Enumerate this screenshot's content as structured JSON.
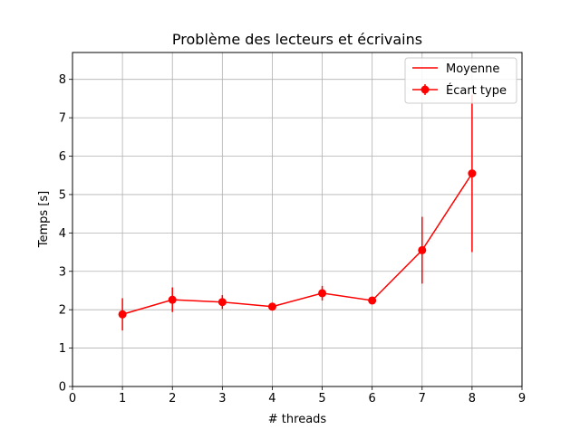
{
  "chart_data": {
    "type": "line",
    "title": "Problème des lecteurs et écrivains",
    "xlabel": "# threads",
    "ylabel": "Temps [s]",
    "xlim": [
      0,
      9
    ],
    "ylim": [
      0,
      8.7
    ],
    "xticks": [
      0,
      1,
      2,
      3,
      4,
      5,
      6,
      7,
      8,
      9
    ],
    "yticks": [
      0,
      1,
      2,
      3,
      4,
      5,
      6,
      7,
      8
    ],
    "grid": true,
    "legend_position": "top-right",
    "color": "#ff0000",
    "x": [
      1,
      2,
      3,
      4,
      5,
      6,
      7,
      8
    ],
    "series": [
      {
        "name": "Moyenne",
        "values": [
          1.88,
          2.26,
          2.2,
          2.08,
          2.43,
          2.24,
          3.55,
          5.55
        ]
      },
      {
        "name": "Écart type",
        "values": [
          1.88,
          2.26,
          2.2,
          2.08,
          2.43,
          2.24,
          3.55,
          5.55
        ],
        "errors": [
          0.42,
          0.32,
          0.18,
          0.05,
          0.19,
          0.05,
          0.87,
          2.05
        ]
      }
    ]
  }
}
